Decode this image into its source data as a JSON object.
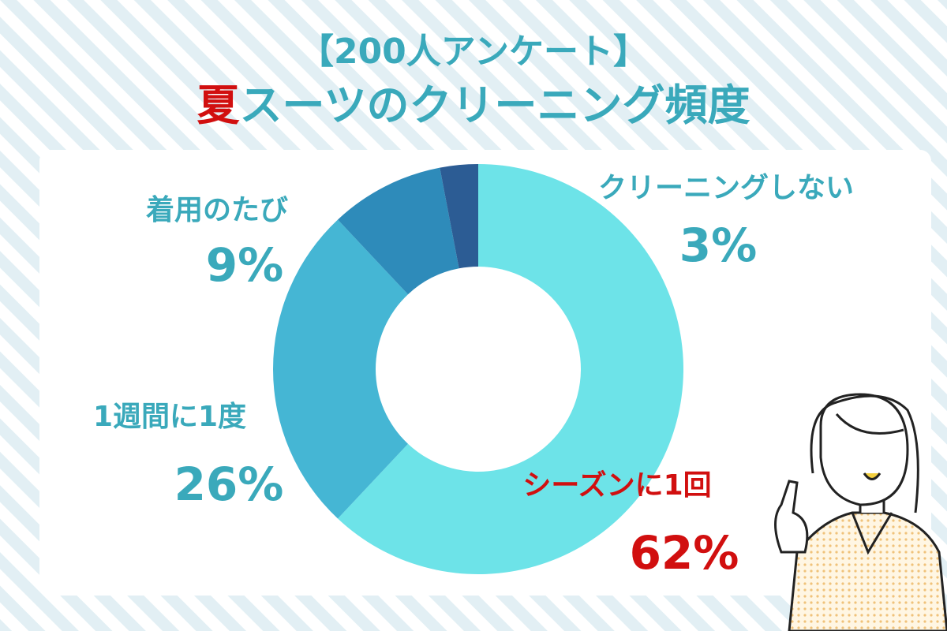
{
  "chart_data": {
    "type": "donut",
    "subtitle": "【200人アンケート】",
    "title": [
      "夏",
      "スーツのクリーニング頻度"
    ],
    "title_colors": [
      "#d10f0f",
      "#3aa9bb"
    ],
    "categories": [
      "シーズンに1回",
      "1週間に1度",
      "着用のたび",
      "クリーニングしない"
    ],
    "values": [
      62,
      26,
      9,
      3
    ],
    "value_labels": [
      "62%",
      "26%",
      "9%",
      "3%"
    ],
    "colors": [
      "#6de3e8",
      "#45b6d4",
      "#2e8bba",
      "#2c5c94"
    ],
    "label_colors": [
      "#d10f0f",
      "#3aa9bb",
      "#3aa9bb",
      "#3aa9bb"
    ]
  }
}
